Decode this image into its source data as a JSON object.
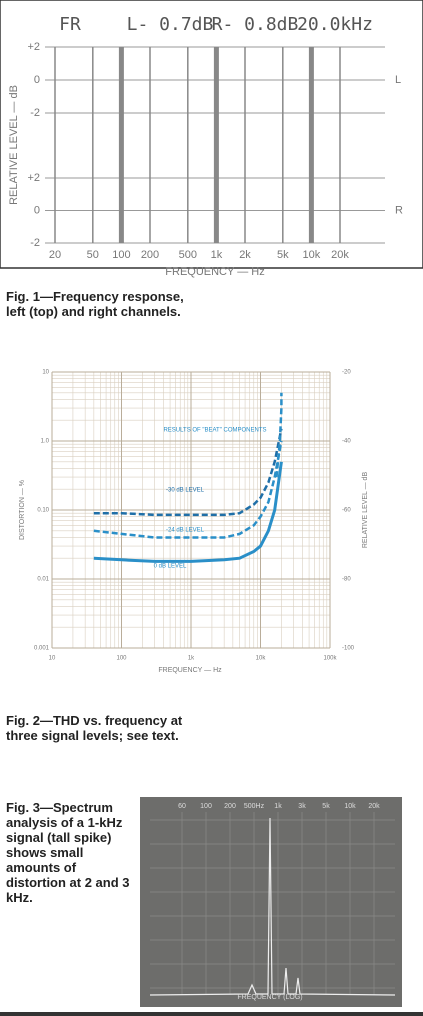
{
  "figure1": {
    "header": {
      "mode": "FR",
      "left": "L- 0.7dB",
      "right": "R- 0.8dB",
      "freq": "20.0kHz"
    },
    "y_axis_label": "RELATIVE LEVEL — dB",
    "yticks": [
      {
        "value": 2,
        "label": "+2"
      },
      0,
      -2
    ],
    "channels": [
      "L",
      "R"
    ],
    "xticks": [
      20,
      50,
      100,
      200,
      500,
      {
        "value": 1000,
        "label": "1k"
      },
      {
        "value": 2000,
        "label": "2k"
      },
      {
        "value": 5000,
        "label": "5k"
      },
      {
        "value": 10000,
        "label": "10k"
      },
      {
        "value": 20000,
        "label": "20k"
      }
    ],
    "x_axis_label": "FREQUENCY — Hz",
    "caption": "Fig. 1—Frequency response, left (top) and right channels."
  },
  "figure2": {
    "xlim": [
      10,
      100000
    ],
    "xticks": [
      10,
      100,
      {
        "value": 1000,
        "label": "1k"
      },
      {
        "value": 10000,
        "label": "10k"
      },
      {
        "value": 100000,
        "label": "100k"
      }
    ],
    "ylim": [
      0.001,
      10
    ],
    "yticks": [
      {
        "value": 10,
        "label": "10"
      },
      {
        "value": 1,
        "label": "1.0"
      },
      {
        "value": 0.1,
        "label": "0.10"
      },
      {
        "value": 0.01,
        "label": "0.01"
      },
      {
        "value": 0.001,
        "label": "0.001"
      }
    ],
    "y2lim": [
      -100,
      -20
    ],
    "y2ticks": [
      -20,
      -40,
      -60,
      -80,
      -100
    ],
    "y_axis_label": "DISTORTION — %",
    "y2_axis_label": "RELATIVE LEVEL — dB",
    "x_axis_label": "FREQUENCY — Hz",
    "series": [
      {
        "name": "-30 dB LEVEL",
        "color": "#1f6fa8",
        "x": [
          40,
          100,
          300,
          1000,
          3000,
          5000,
          8000,
          10000,
          13000,
          16000,
          20000
        ],
        "values": [
          0.09,
          0.09,
          0.085,
          0.085,
          0.085,
          0.09,
          0.12,
          0.15,
          0.25,
          0.5,
          1.5
        ]
      },
      {
        "name": "-24 dB LEVEL",
        "color": "#2a8fc8",
        "x": [
          40,
          100,
          300,
          1000,
          3000,
          5000,
          8000,
          10000,
          13000,
          16000,
          20000
        ],
        "values": [
          0.05,
          0.045,
          0.04,
          0.04,
          0.04,
          0.045,
          0.06,
          0.08,
          0.13,
          0.3,
          1
        ]
      },
      {
        "name": "0 dB LEVEL",
        "color": "#2a8fc8",
        "x": [
          40,
          100,
          300,
          1000,
          3000,
          5000,
          8000,
          10000,
          13000,
          16000,
          20000
        ],
        "values": [
          0.02,
          0.019,
          0.018,
          0.018,
          0.019,
          0.02,
          0.025,
          0.03,
          0.05,
          0.1,
          0.5
        ]
      },
      {
        "name": "RESULTS OF \"BEAT\" COMPONENTS",
        "color": "#2a8fc8",
        "x": [
          17000,
          19000,
          20000,
          20000
        ],
        "values": [
          0.3,
          1,
          3,
          5
        ]
      }
    ],
    "caption": "Fig. 2—THD vs. frequency at three signal levels; see text."
  },
  "figure3": {
    "scale_labels": [
      "60",
      "100",
      "200",
      "500Hz",
      "1k",
      "3k",
      "5k",
      "10k",
      "20k"
    ],
    "bottom_label": "FREQUENCY (LOG)",
    "caption": "Fig. 3—Spectrum analysis of a 1-kHz signal (tall spike) shows small amounts of distortion at 2 and 3 kHz."
  }
}
